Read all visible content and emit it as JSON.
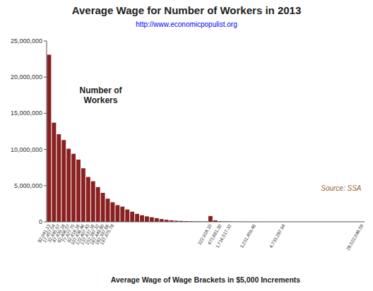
{
  "chart_data": {
    "type": "bar",
    "title": "Average Wage for Number of Workers  in 2013",
    "subtitle": "http://www.economicpopulist.org",
    "xlabel": "Average Wage of Wage Brackets in $5,000 Increments",
    "annotations": [
      "Number of\nWorkers",
      "Source: SSA"
    ],
    "color": "#8B2020",
    "grid": false,
    "ylim": [
      0,
      25000000
    ],
    "yticks": [
      0,
      {
        "value": 5000000,
        "label": "5,000,000"
      },
      {
        "value": 10000000,
        "label": "10,000,000"
      },
      {
        "value": 15000000,
        "label": "15,000,000"
      },
      {
        "value": 20000000,
        "label": "20,000,000"
      },
      {
        "value": 25000000,
        "label": "25,000,000"
      }
    ],
    "categories": [
      "$2,041.13",
      "17,457.54",
      "32,445.57",
      "47,439.18",
      "62,406.57",
      "77,427.75",
      "92,418.16",
      "107,436.46",
      "122,407.43",
      "137,437.16",
      "152,387.32",
      "167,449.80",
      "182,397.66",
      "197,475.78",
      null,
      null,
      null,
      null,
      null,
      null,
      null,
      null,
      null,
      null,
      null,
      null,
      null,
      null,
      null,
      null,
      null,
      null,
      null,
      "322,918.10",
      null,
      "473,661.30",
      null,
      "1,716,517.32",
      null,
      null,
      null,
      null,
      "3,231,459.46",
      null,
      null,
      null,
      null,
      null,
      "4,733,287.94",
      null,
      null,
      null,
      null,
      null,
      null,
      null,
      null,
      null,
      null,
      null,
      null,
      null,
      null,
      null,
      "28,522,046.59"
    ],
    "values": [
      23100000,
      13700000,
      12100000,
      11300000,
      10100000,
      9400000,
      8600000,
      7400000,
      6200000,
      5600000,
      4800000,
      4000000,
      3200000,
      2700000,
      2300000,
      2100000,
      1700000,
      1400000,
      1100000,
      900000,
      750000,
      630000,
      500000,
      380000,
      280000,
      200000,
      150000,
      120000,
      90000,
      70000,
      55000,
      45000,
      38000,
      800000,
      200000,
      80000,
      45000,
      30000,
      20000,
      15000,
      12000,
      10000,
      8000,
      6000,
      5000,
      4000,
      3500,
      3000,
      2500,
      2000,
      1800,
      1600,
      1400,
      1200,
      1000,
      900,
      800,
      700,
      600,
      500,
      450,
      400,
      350,
      300,
      250
    ]
  }
}
